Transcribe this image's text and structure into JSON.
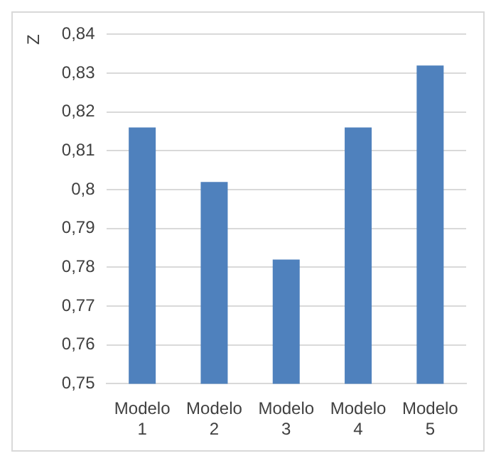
{
  "chart_data": {
    "type": "bar",
    "ylabel": "Z",
    "categories": [
      "Modelo 1",
      "Modelo 2",
      "Modelo 3",
      "Modelo 4",
      "Modelo 5"
    ],
    "values": [
      0.816,
      0.802,
      0.782,
      0.816,
      0.832
    ],
    "color": "#4f81bd",
    "ylim": [
      0.75,
      0.84
    ],
    "yticks": [
      {
        "value": 0.75,
        "label": "0,75"
      },
      {
        "value": 0.76,
        "label": "0,76"
      },
      {
        "value": 0.77,
        "label": "0,77"
      },
      {
        "value": 0.78,
        "label": "0,78"
      },
      {
        "value": 0.79,
        "label": "0,79"
      },
      {
        "value": 0.8,
        "label": "0,8"
      },
      {
        "value": 0.81,
        "label": "0,81"
      },
      {
        "value": 0.82,
        "label": "0,82"
      },
      {
        "value": 0.83,
        "label": "0,83"
      },
      {
        "value": 0.84,
        "label": "0,84"
      }
    ],
    "grid": "y"
  }
}
